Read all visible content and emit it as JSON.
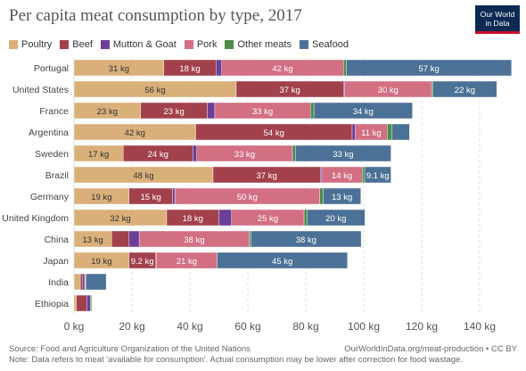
{
  "title": "Per capita meat consumption by type, 2017",
  "logo": {
    "line1": "Our World",
    "line2": "in Data"
  },
  "source": "Source: Food and Agriculture Organization of the United Nations",
  "note": "Note: Data refers to meat 'available for consumption'. Actual consumption may be lower after correction for food wastage.",
  "url": "OurWorldInData.org/meat-production • CC BY",
  "chart_data": {
    "type": "bar",
    "orientation": "horizontal",
    "stacked": true,
    "unit": "kg",
    "xlim": [
      0,
      150
    ],
    "x_ticks": [
      0,
      20,
      40,
      60,
      80,
      100,
      120,
      140
    ],
    "x_tick_labels": [
      "0 kg",
      "20 kg",
      "40 kg",
      "60 kg",
      "80 kg",
      "100 kg",
      "120 kg",
      "140 kg"
    ],
    "grid": "vertical dashed",
    "legend_position": "top",
    "categories": [
      "Portugal",
      "United States",
      "France",
      "Argentina",
      "Sweden",
      "Brazil",
      "Germany",
      "United Kingdom",
      "China",
      "Japan",
      "India",
      "Ethiopia"
    ],
    "series": [
      {
        "name": "Poultry",
        "color": "#d9b07a",
        "values": [
          31,
          56,
          23,
          42,
          17,
          48,
          19,
          32,
          13,
          19,
          2.2,
          0.8
        ]
      },
      {
        "name": "Beef",
        "color": "#a2414c",
        "values": [
          18,
          37,
          23,
          54,
          24,
          37,
          15,
          18,
          6,
          9.2,
          0.8,
          3.6
        ]
      },
      {
        "name": "Mutton & Goat",
        "color": "#6c3f98",
        "values": [
          2,
          0.4,
          2.6,
          1.1,
          1.4,
          0.5,
          0.8,
          4.4,
          3.5,
          0.2,
          0.7,
          1.2
        ]
      },
      {
        "name": "Pork",
        "color": "#d36f83",
        "values": [
          42,
          30,
          33,
          11,
          33,
          14,
          50,
          25,
          38,
          21,
          0.3,
          0
        ]
      },
      {
        "name": "Other meats",
        "color": "#4f8c4a",
        "values": [
          1,
          0.5,
          1.2,
          1.7,
          1,
          0.8,
          1.2,
          1,
          0.6,
          0,
          0.1,
          0.3
        ]
      },
      {
        "name": "Seafood",
        "color": "#4c7196",
        "values": [
          57,
          22,
          34,
          6,
          33,
          9.1,
          13,
          20,
          38,
          45,
          7,
          0.3
        ]
      }
    ],
    "data_labels": [
      [
        "31 kg",
        "18 kg",
        "",
        "42 kg",
        "",
        "57 kg"
      ],
      [
        "56 kg",
        "37 kg",
        "",
        "30 kg",
        "",
        "22 kg"
      ],
      [
        "23 kg",
        "23 kg",
        "",
        "33 kg",
        "",
        "34 kg"
      ],
      [
        "42 kg",
        "54 kg",
        "",
        "11 kg",
        "",
        ""
      ],
      [
        "17 kg",
        "24 kg",
        "",
        "33 kg",
        "",
        "33 kg"
      ],
      [
        "48 kg",
        "37 kg",
        "",
        "14 kg",
        "",
        "9.1 kg"
      ],
      [
        "19 kg",
        "15 kg",
        "",
        "50 kg",
        "",
        "13 kg"
      ],
      [
        "32 kg",
        "18 kg",
        "",
        "25 kg",
        "",
        "20 kg"
      ],
      [
        "13 kg",
        "",
        "",
        "38 kg",
        "",
        "38 kg"
      ],
      [
        "19 kg",
        "9.2 kg",
        "",
        "21 kg",
        "",
        "45 kg"
      ],
      [
        "",
        "",
        "",
        "",
        "",
        ""
      ],
      [
        "",
        "",
        "",
        "",
        "",
        ""
      ]
    ]
  }
}
